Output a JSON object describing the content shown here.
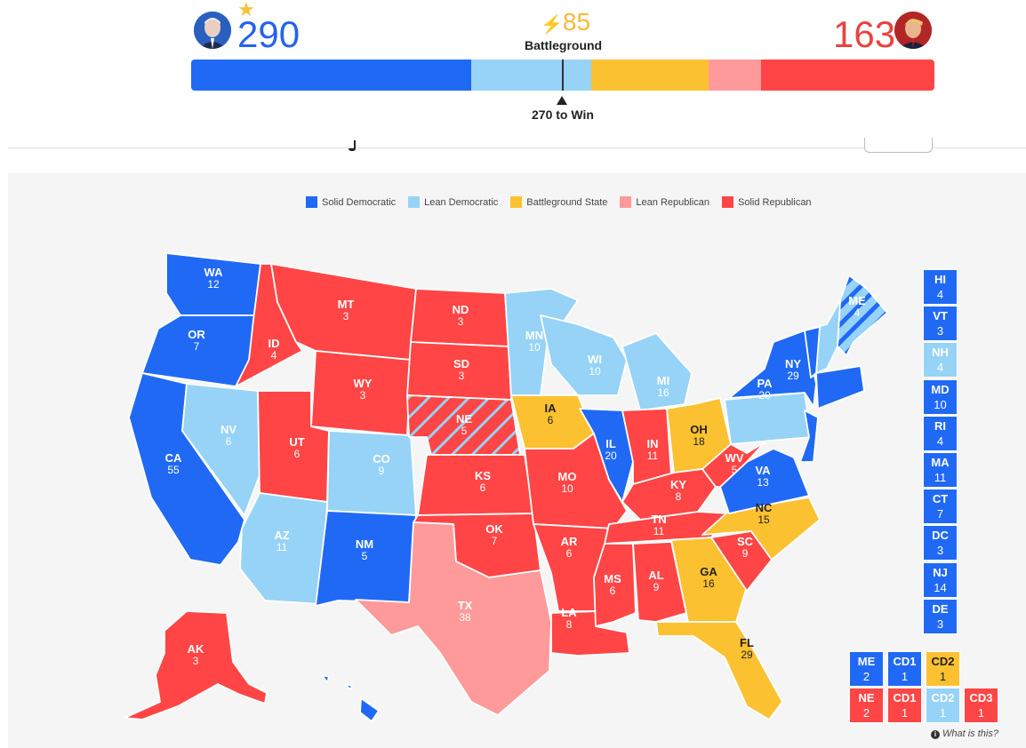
{
  "header": {
    "dem_total": "290",
    "rep_total": "163",
    "battleground_count": "85",
    "battleground_label": "Battleground",
    "win_label": "270 to Win",
    "winner_star": "★",
    "bolt": "⚡"
  },
  "bar_segments": [
    {
      "category": "solid_dem",
      "value": 0.377,
      "color": "#2069f5"
    },
    {
      "category": "lean_dem",
      "value": 0.161,
      "color": "#96d3f7"
    },
    {
      "category": "battleground",
      "value": 0.158,
      "color": "#fbc131"
    },
    {
      "category": "lean_rep",
      "value": 0.071,
      "color": "#ff9a9a"
    },
    {
      "category": "solid_rep",
      "value": 0.233,
      "color": "#ff4545"
    }
  ],
  "legend": [
    {
      "label": "Solid Democratic",
      "color": "#2069f5"
    },
    {
      "label": "Lean Democratic",
      "color": "#96d3f7"
    },
    {
      "label": "Battleground State",
      "color": "#fbc131"
    },
    {
      "label": "Lean Republican",
      "color": "#ff9a9a"
    },
    {
      "label": "Solid Republican",
      "color": "#ff4545"
    }
  ],
  "colors": {
    "solid_dem": "#2069f5",
    "lean_dem": "#96d3f7",
    "battleground": "#fbc131",
    "lean_rep": "#ff9a9a",
    "solid_rep": "#ff4545"
  },
  "states": [
    {
      "abbr": "WA",
      "ev": "12",
      "rating": "solid_dem"
    },
    {
      "abbr": "OR",
      "ev": "7",
      "rating": "solid_dem"
    },
    {
      "abbr": "CA",
      "ev": "55",
      "rating": "solid_dem"
    },
    {
      "abbr": "NV",
      "ev": "6",
      "rating": "lean_dem"
    },
    {
      "abbr": "ID",
      "ev": "4",
      "rating": "solid_rep"
    },
    {
      "abbr": "MT",
      "ev": "3",
      "rating": "solid_rep"
    },
    {
      "abbr": "WY",
      "ev": "3",
      "rating": "solid_rep"
    },
    {
      "abbr": "UT",
      "ev": "6",
      "rating": "solid_rep"
    },
    {
      "abbr": "AZ",
      "ev": "11",
      "rating": "lean_dem"
    },
    {
      "abbr": "CO",
      "ev": "9",
      "rating": "lean_dem"
    },
    {
      "abbr": "NM",
      "ev": "5",
      "rating": "solid_dem"
    },
    {
      "abbr": "ND",
      "ev": "3",
      "rating": "solid_rep"
    },
    {
      "abbr": "SD",
      "ev": "3",
      "rating": "solid_rep"
    },
    {
      "abbr": "NE",
      "ev": "5",
      "rating": "solid_rep"
    },
    {
      "abbr": "KS",
      "ev": "6",
      "rating": "solid_rep"
    },
    {
      "abbr": "OK",
      "ev": "7",
      "rating": "solid_rep"
    },
    {
      "abbr": "TX",
      "ev": "38",
      "rating": "lean_rep"
    },
    {
      "abbr": "MN",
      "ev": "10",
      "rating": "lean_dem"
    },
    {
      "abbr": "IA",
      "ev": "6",
      "rating": "battleground"
    },
    {
      "abbr": "MO",
      "ev": "10",
      "rating": "solid_rep"
    },
    {
      "abbr": "AR",
      "ev": "6",
      "rating": "solid_rep"
    },
    {
      "abbr": "LA",
      "ev": "8",
      "rating": "solid_rep"
    },
    {
      "abbr": "WI",
      "ev": "10",
      "rating": "lean_dem"
    },
    {
      "abbr": "IL",
      "ev": "20",
      "rating": "solid_dem"
    },
    {
      "abbr": "MI",
      "ev": "16",
      "rating": "lean_dem"
    },
    {
      "abbr": "IN",
      "ev": "11",
      "rating": "solid_rep"
    },
    {
      "abbr": "OH",
      "ev": "18",
      "rating": "battleground"
    },
    {
      "abbr": "KY",
      "ev": "8",
      "rating": "solid_rep"
    },
    {
      "abbr": "TN",
      "ev": "11",
      "rating": "solid_rep"
    },
    {
      "abbr": "MS",
      "ev": "6",
      "rating": "solid_rep"
    },
    {
      "abbr": "AL",
      "ev": "9",
      "rating": "solid_rep"
    },
    {
      "abbr": "GA",
      "ev": "16",
      "rating": "battleground"
    },
    {
      "abbr": "FL",
      "ev": "29",
      "rating": "battleground"
    },
    {
      "abbr": "SC",
      "ev": "9",
      "rating": "solid_rep"
    },
    {
      "abbr": "NC",
      "ev": "15",
      "rating": "battleground"
    },
    {
      "abbr": "VA",
      "ev": "13",
      "rating": "solid_dem"
    },
    {
      "abbr": "WV",
      "ev": "5",
      "rating": "solid_rep"
    },
    {
      "abbr": "PA",
      "ev": "20",
      "rating": "lean_dem"
    },
    {
      "abbr": "NY",
      "ev": "29",
      "rating": "solid_dem"
    },
    {
      "abbr": "ME",
      "ev": "4",
      "rating": "lean_dem"
    },
    {
      "abbr": "AK",
      "ev": "3",
      "rating": "solid_rep"
    }
  ],
  "small_states": [
    {
      "abbr": "HI",
      "ev": "4",
      "rating": "solid_dem"
    },
    {
      "abbr": "VT",
      "ev": "3",
      "rating": "solid_dem"
    },
    {
      "abbr": "NH",
      "ev": "4",
      "rating": "lean_dem"
    },
    {
      "abbr": "MD",
      "ev": "10",
      "rating": "solid_dem"
    },
    {
      "abbr": "RI",
      "ev": "4",
      "rating": "solid_dem"
    },
    {
      "abbr": "MA",
      "ev": "11",
      "rating": "solid_dem"
    },
    {
      "abbr": "CT",
      "ev": "7",
      "rating": "solid_dem"
    },
    {
      "abbr": "DC",
      "ev": "3",
      "rating": "solid_dem"
    },
    {
      "abbr": "NJ",
      "ev": "14",
      "rating": "solid_dem"
    },
    {
      "abbr": "DE",
      "ev": "3",
      "rating": "solid_dem"
    }
  ],
  "districts": {
    "me_row": [
      {
        "abbr": "ME",
        "ev": "2",
        "rating": "solid_dem"
      },
      {
        "abbr": "CD1",
        "ev": "1",
        "rating": "solid_dem"
      },
      {
        "abbr": "CD2",
        "ev": "1",
        "rating": "battleground"
      }
    ],
    "ne_row": [
      {
        "abbr": "NE",
        "ev": "2",
        "rating": "solid_rep"
      },
      {
        "abbr": "CD1",
        "ev": "1",
        "rating": "solid_rep"
      },
      {
        "abbr": "CD2",
        "ev": "1",
        "rating": "lean_dem"
      },
      {
        "abbr": "CD3",
        "ev": "1",
        "rating": "solid_rep"
      }
    ]
  },
  "footer": {
    "info_label": "What is this?",
    "info_icon": "i"
  }
}
